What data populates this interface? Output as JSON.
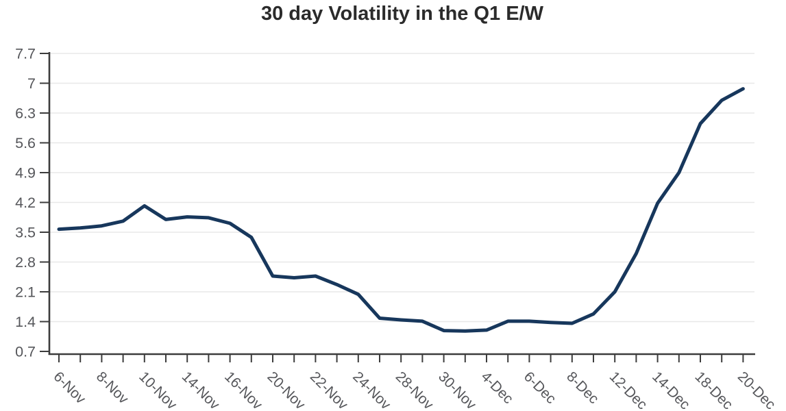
{
  "chart_data": {
    "type": "line",
    "title": "30 day Volatility in the Q1 E/W",
    "legend": "none",
    "grid": "horizontal",
    "ylim": [
      0.7,
      7.7
    ],
    "yticks": [
      0.7,
      1.4,
      2.1,
      2.8,
      3.5,
      4.2,
      4.9,
      5.6,
      6.3,
      7,
      7.7
    ],
    "ytick_labels": [
      "0.7",
      "1.4",
      "2.1",
      "2.8",
      "3.5",
      "4.2",
      "4.9",
      "5.6",
      "6.3",
      "7",
      "7.7"
    ],
    "x_tick_labels": [
      "6-Nov",
      "8-Nov",
      "10-Nov",
      "14-Nov",
      "16-Nov",
      "20-Nov",
      "22-Nov",
      "24-Nov",
      "28-Nov",
      "30-Nov",
      "4-Dec",
      "6-Dec",
      "8-Dec",
      "12-Dec",
      "14-Dec",
      "18-Dec",
      "20-Dec"
    ],
    "x_label_every_n_points": 2,
    "num_points": 33,
    "series": [
      {
        "name": "30 day volatility",
        "values": [
          3.57,
          3.6,
          3.65,
          3.76,
          4.12,
          3.8,
          3.86,
          3.84,
          3.71,
          3.38,
          2.47,
          2.43,
          2.47,
          2.27,
          2.04,
          1.48,
          1.44,
          1.41,
          1.19,
          1.18,
          1.2,
          1.41,
          1.41,
          1.38,
          1.36,
          1.58,
          2.1,
          3.0,
          4.18,
          4.9,
          6.05,
          6.6,
          6.87
        ]
      }
    ],
    "colors": {
      "line": "#17375c",
      "axis": "#3c3c3c",
      "tick_label": "#55565a",
      "gridline": "#e8e8e8",
      "title": "#2b2b2b",
      "background": "#ffffff"
    }
  }
}
